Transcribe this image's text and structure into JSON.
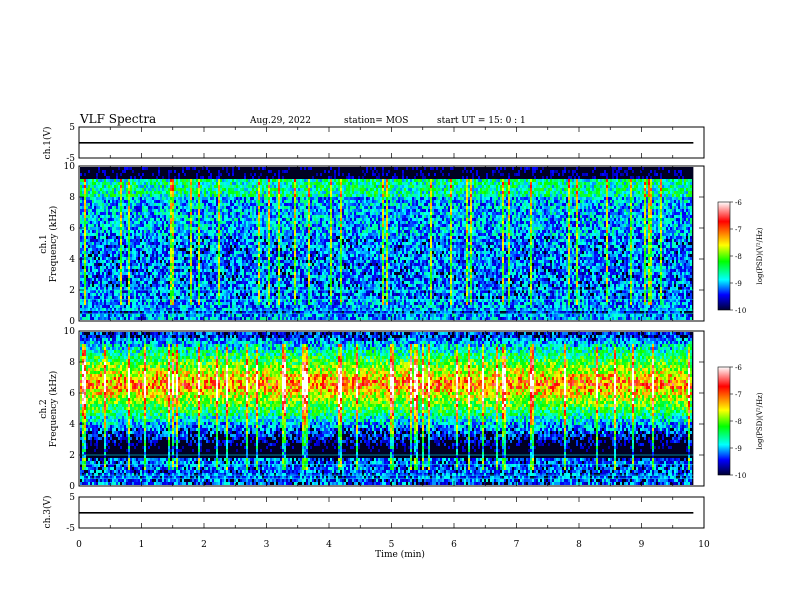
{
  "header": {
    "title": "VLF Spectra",
    "date": "Aug.29, 2022",
    "station": "station= MOS",
    "start": "start  UT =  15: 0  : 1"
  },
  "labels": {
    "ch1_wave": "ch.1(V)",
    "ch1_spec": "ch.1\nFrequency (kHz)",
    "ch2_spec": "ch.2\nFrequency (kHz)",
    "ch3_wave": "ch.3(V)",
    "xlabel": "Time  (min)",
    "colorbar_label": "log(PSD)(V²/Hz)"
  },
  "colors": {
    "background": "#000022",
    "colormap": [
      "#ffffff",
      "#ff0000",
      "#ffff00",
      "#00ff00",
      "#00ffff",
      "#0000ff",
      "#000033"
    ]
  },
  "chart_data": [
    {
      "type": "line",
      "name": "ch1 waveform",
      "ylabel": "ch.1(V)",
      "ylim": [
        -5,
        5
      ],
      "yticks": [
        5,
        -5
      ],
      "x": [
        0,
        10
      ],
      "values": [
        -0.1,
        -0.1
      ]
    },
    {
      "type": "heatmap",
      "name": "ch1 spectrogram",
      "ylabel": "ch.1 Frequency (kHz)",
      "ylim": [
        0,
        10
      ],
      "yticks": [
        0,
        2,
        4,
        6,
        8,
        10
      ],
      "xlim": [
        0,
        10
      ],
      "data_end_min": 9.83,
      "colorbar": {
        "min": -10,
        "max": -6,
        "ticks": [
          "-6",
          "-7",
          "-8",
          "-9",
          "-10"
        ]
      }
    },
    {
      "type": "heatmap",
      "name": "ch2 spectrogram",
      "ylabel": "ch.2 Frequency (kHz)",
      "ylim": [
        0,
        10
      ],
      "yticks": [
        0,
        2,
        4,
        6,
        8,
        10
      ],
      "xlim": [
        0,
        10
      ],
      "data_end_min": 9.83,
      "colorbar": {
        "min": -10,
        "max": -6,
        "ticks": [
          "-6",
          "-7",
          "-8",
          "-9",
          "-10"
        ]
      }
    },
    {
      "type": "line",
      "name": "ch3 waveform",
      "ylabel": "ch.3(V)",
      "ylim": [
        -5,
        5
      ],
      "yticks": [
        5,
        -5
      ],
      "x": [
        0,
        10
      ],
      "values": [
        -0.1,
        -0.1
      ]
    },
    {
      "type": "axis",
      "xlabel": "Time  (min)",
      "xlim": [
        0,
        10
      ],
      "xticks": [
        "0",
        "1",
        "2",
        "3",
        "4",
        "5",
        "6",
        "7",
        "8",
        "9",
        "10"
      ]
    }
  ]
}
